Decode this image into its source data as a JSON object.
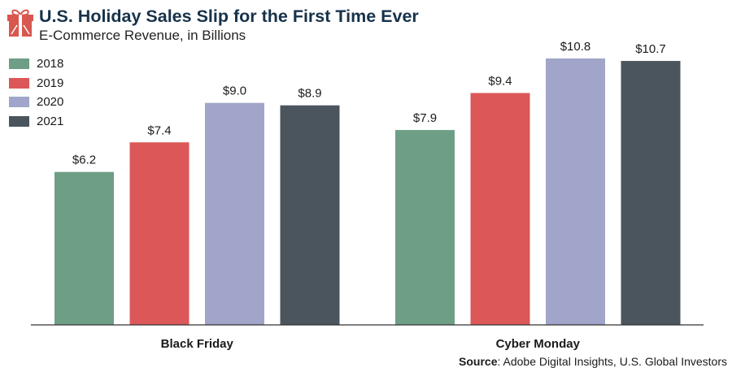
{
  "header": {
    "title": "U.S. Holiday Sales Slip for the First Time Ever",
    "subtitle": "E-Commerce Revenue, in Billions"
  },
  "source": {
    "label": "Source",
    "text": ": Adobe Digital Insights, U.S. Global Investors"
  },
  "colors": {
    "gift_icon": "#d9574f",
    "title": "#17324a",
    "axis": "#333333"
  },
  "chart_data": {
    "type": "bar",
    "title": "U.S. Holiday Sales Slip for the First Time Ever",
    "subtitle": "E-Commerce Revenue, in Billions",
    "categories": [
      "Black Friday",
      "Cyber Monday"
    ],
    "series": [
      {
        "name": "2018",
        "color": "#6e9e86",
        "values": [
          6.2,
          7.9
        ],
        "labels": [
          "$6.2",
          "$7.9"
        ]
      },
      {
        "name": "2019",
        "color": "#dc5757",
        "values": [
          7.4,
          9.4
        ],
        "labels": [
          "$7.4",
          "$9.4"
        ]
      },
      {
        "name": "2020",
        "color": "#a0a5c9",
        "values": [
          9.0,
          10.8
        ],
        "labels": [
          "$9.0",
          "$10.8"
        ]
      },
      {
        "name": "2021",
        "color": "#4a555e",
        "values": [
          8.9,
          10.7
        ],
        "labels": [
          "$8.9",
          "$10.7"
        ]
      }
    ],
    "xlabel": "",
    "ylabel": "",
    "ylim": [
      0,
      10.8
    ],
    "grid": false,
    "legend": "top-left"
  }
}
